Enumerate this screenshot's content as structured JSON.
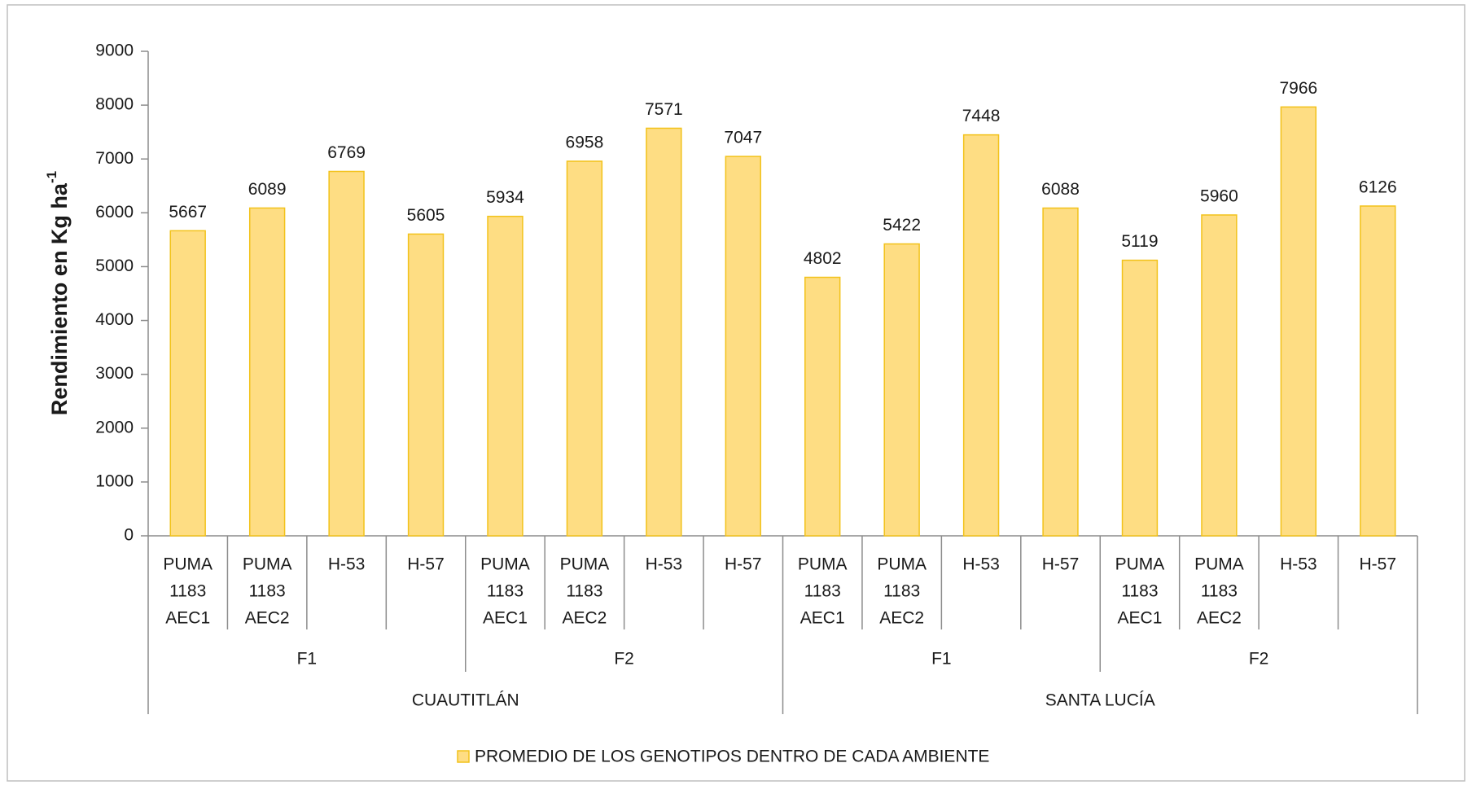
{
  "chart_data": {
    "type": "bar",
    "ylabel": "Rendimiento en Kg ha",
    "ylabel_sup": "-1",
    "categories": [
      [
        "PUMA",
        "1183",
        "AEC1"
      ],
      [
        "PUMA",
        "1183",
        "AEC2"
      ],
      [
        "H-53"
      ],
      [
        "H-57"
      ],
      [
        "PUMA",
        "1183",
        "AEC1"
      ],
      [
        "PUMA",
        "1183",
        "AEC2"
      ],
      [
        "H-53"
      ],
      [
        "H-57"
      ],
      [
        "PUMA",
        "1183",
        "AEC1"
      ],
      [
        "PUMA",
        "1183",
        "AEC2"
      ],
      [
        "H-53"
      ],
      [
        "H-57"
      ],
      [
        "PUMA",
        "1183",
        "AEC1"
      ],
      [
        "PUMA",
        "1183",
        "AEC2"
      ],
      [
        "H-53"
      ],
      [
        "H-57"
      ]
    ],
    "subgroups": [
      "F1",
      "F2",
      "F1",
      "F2"
    ],
    "groups": [
      "CUAUTITLÁN",
      "SANTA LUCÍA"
    ],
    "series": [
      {
        "name": "PROMEDIO DE LOS GENOTIPOS DENTRO DE CADA AMBIENTE",
        "color": "#fedd83",
        "edge": "#f2c21a",
        "values": [
          5667,
          6089,
          6769,
          5605,
          5934,
          6958,
          7571,
          7047,
          4802,
          5422,
          7448,
          6088,
          5119,
          5960,
          7966,
          6126
        ]
      }
    ],
    "ylim": [
      0,
      9000
    ],
    "yticks": [
      0,
      1000,
      2000,
      3000,
      4000,
      5000,
      6000,
      7000,
      8000,
      9000
    ],
    "legend": "bottom"
  }
}
